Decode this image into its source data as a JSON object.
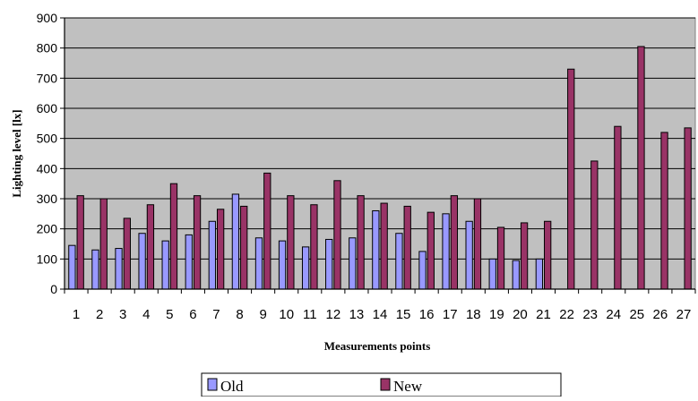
{
  "chart_data": {
    "type": "bar",
    "title": "",
    "xlabel": "Measurements points",
    "ylabel": "Lighting level [lx]",
    "ylim": [
      0,
      900
    ],
    "yticks": [
      0,
      100,
      200,
      300,
      400,
      500,
      600,
      700,
      800,
      900
    ],
    "grid": true,
    "legend_position": "bottom",
    "categories": [
      "1",
      "2",
      "3",
      "4",
      "5",
      "6",
      "7",
      "8",
      "9",
      "10",
      "11",
      "12",
      "13",
      "14",
      "15",
      "16",
      "17",
      "18",
      "19",
      "20",
      "21",
      "22",
      "23",
      "24",
      "25",
      "26",
      "27"
    ],
    "series": [
      {
        "name": "Old",
        "color": "#9999ff",
        "values": [
          145,
          130,
          135,
          185,
          160,
          180,
          225,
          315,
          170,
          160,
          140,
          165,
          170,
          260,
          185,
          125,
          250,
          225,
          100,
          95,
          100,
          null,
          null,
          null,
          null,
          null,
          null
        ]
      },
      {
        "name": "New",
        "color": "#993366",
        "values": [
          310,
          300,
          235,
          280,
          350,
          310,
          265,
          275,
          385,
          310,
          280,
          360,
          310,
          285,
          275,
          255,
          310,
          300,
          205,
          220,
          225,
          730,
          425,
          540,
          805,
          520,
          535
        ]
      }
    ],
    "plot_background": "#c0c0c0"
  }
}
